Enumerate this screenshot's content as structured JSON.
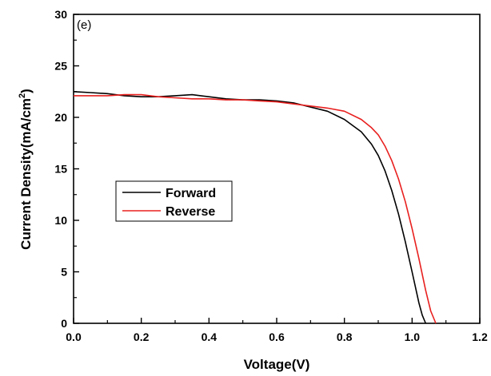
{
  "chart_data": {
    "type": "line",
    "panel_label": "(e)",
    "xlabel": "Voltage(V)",
    "ylabel": "Current  Density(mA/cm",
    "ylabel_sup": "2",
    "ylabel_end": ")",
    "xlim": [
      0.0,
      1.2
    ],
    "ylim": [
      0,
      30
    ],
    "xticks": [
      0.0,
      0.2,
      0.4,
      0.6,
      0.8,
      1.0,
      1.2
    ],
    "xtick_labels": [
      "0.0",
      "0.2",
      "0.4",
      "0.6",
      "0.8",
      "1.0",
      "1.2"
    ],
    "yticks": [
      0,
      5,
      10,
      15,
      20,
      25,
      30
    ],
    "ytick_labels": [
      "0",
      "5",
      "10",
      "15",
      "20",
      "25",
      "30"
    ],
    "grid": false,
    "legend_placement": "center-left",
    "series": [
      {
        "name": "Forward",
        "color": "#000000",
        "x": [
          0.0,
          0.05,
          0.1,
          0.15,
          0.2,
          0.25,
          0.3,
          0.35,
          0.4,
          0.45,
          0.5,
          0.55,
          0.6,
          0.65,
          0.7,
          0.75,
          0.8,
          0.85,
          0.88,
          0.9,
          0.92,
          0.94,
          0.96,
          0.98,
          1.0,
          1.02,
          1.03,
          1.04
        ],
        "y": [
          22.5,
          22.4,
          22.3,
          22.1,
          22.0,
          22.0,
          22.1,
          22.2,
          22.0,
          21.8,
          21.7,
          21.7,
          21.6,
          21.4,
          21.0,
          20.6,
          19.8,
          18.6,
          17.4,
          16.3,
          14.8,
          12.9,
          10.6,
          7.9,
          5.0,
          2.0,
          0.8,
          0.0
        ]
      },
      {
        "name": "Reverse",
        "color": "#e8201f",
        "x": [
          0.0,
          0.05,
          0.1,
          0.15,
          0.2,
          0.25,
          0.3,
          0.35,
          0.4,
          0.45,
          0.5,
          0.55,
          0.6,
          0.65,
          0.7,
          0.75,
          0.8,
          0.85,
          0.88,
          0.9,
          0.92,
          0.94,
          0.96,
          0.98,
          1.0,
          1.02,
          1.04,
          1.055,
          1.07
        ],
        "y": [
          22.1,
          22.1,
          22.1,
          22.2,
          22.2,
          22.0,
          21.9,
          21.8,
          21.8,
          21.7,
          21.7,
          21.6,
          21.5,
          21.3,
          21.1,
          20.9,
          20.6,
          19.8,
          19.0,
          18.3,
          17.2,
          15.8,
          14.0,
          11.8,
          9.2,
          6.3,
          3.2,
          1.2,
          0.0
        ]
      }
    ]
  }
}
